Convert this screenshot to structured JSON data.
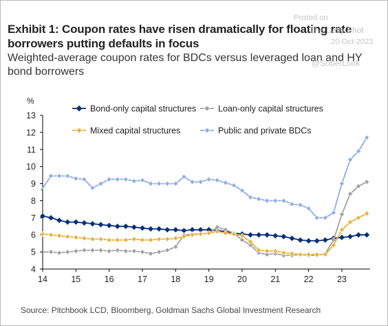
{
  "header": {
    "title": "Exhibit 1: Coupon rates have risen dramatically for floating rate borrowers putting defaults in focus",
    "subtitle": "Weighted-average coupon rates for BDCs versus leveraged loan and HY bond borrowers"
  },
  "watermark": {
    "posted_on": "Posted on",
    "brand": "The Daily Shot",
    "date": "20-Oct-2023",
    "handle": "@SoberLook"
  },
  "source": "Source: Pitchbook LCD, Bloomberg, Goldman Sachs Global Investment Research",
  "chart_data": {
    "type": "line",
    "ylabel": "%",
    "ylim": [
      4,
      13
    ],
    "yticks": [
      4,
      5,
      6,
      7,
      8,
      9,
      10,
      11,
      12,
      13
    ],
    "xlim": [
      14,
      23.85
    ],
    "xticks": [
      "14",
      "15",
      "16",
      "17",
      "18",
      "19",
      "20",
      "21",
      "22",
      "23"
    ],
    "grid": false,
    "legend": "top",
    "x": [
      14.0,
      14.25,
      14.5,
      14.75,
      15.0,
      15.25,
      15.5,
      15.75,
      16.0,
      16.25,
      16.5,
      16.75,
      17.0,
      17.25,
      17.5,
      17.75,
      18.0,
      18.25,
      18.5,
      18.75,
      19.0,
      19.25,
      19.5,
      19.75,
      20.0,
      20.25,
      20.5,
      20.75,
      21.0,
      21.25,
      21.5,
      21.75,
      22.0,
      22.25,
      22.5,
      22.75,
      23.0,
      23.25,
      23.5,
      23.75
    ],
    "series": [
      {
        "name": "Bond-only capital structures",
        "color": "#0a2f7a",
        "marker": "diamond",
        "values": [
          7.1,
          7.0,
          6.85,
          6.75,
          6.75,
          6.7,
          6.65,
          6.6,
          6.55,
          6.5,
          6.5,
          6.45,
          6.4,
          6.35,
          6.35,
          6.3,
          6.3,
          6.25,
          6.3,
          6.3,
          6.3,
          6.25,
          6.2,
          6.1,
          6.05,
          6.0,
          6.0,
          6.0,
          5.95,
          5.9,
          5.8,
          5.7,
          5.65,
          5.65,
          5.7,
          5.8,
          5.85,
          5.9,
          6.0,
          6.0
        ]
      },
      {
        "name": "Loan-only capital structures",
        "color": "#a0a0a0",
        "marker": "diamond",
        "values": [
          null,
          5.0,
          4.95,
          5.0,
          5.05,
          5.1,
          5.1,
          5.1,
          5.05,
          5.1,
          5.05,
          5.05,
          5.0,
          4.9,
          5.0,
          5.1,
          5.3,
          6.0,
          6.05,
          6.05,
          6.1,
          6.45,
          6.3,
          6.1,
          5.7,
          5.4,
          4.95,
          4.85,
          4.9,
          4.8,
          4.8,
          4.85,
          4.8,
          4.8,
          4.9,
          5.7,
          7.2,
          8.4,
          8.85,
          9.1
        ]
      },
      {
        "name": "Mixed capital structures",
        "color": "#e8b23a",
        "marker": "diamond",
        "values": [
          6.05,
          6.0,
          5.95,
          5.9,
          5.85,
          5.8,
          5.75,
          5.75,
          5.7,
          5.7,
          5.7,
          5.75,
          5.7,
          5.7,
          5.75,
          5.75,
          5.8,
          5.9,
          6.0,
          6.05,
          6.1,
          6.2,
          6.1,
          6.05,
          5.95,
          5.6,
          5.1,
          5.05,
          5.05,
          4.95,
          4.9,
          4.85,
          4.85,
          4.85,
          4.85,
          5.4,
          6.3,
          6.75,
          7.0,
          7.25
        ]
      },
      {
        "name": "Public and private BDCs",
        "color": "#8faee3",
        "marker": "diamond",
        "values": [
          null,
          9.45,
          9.45,
          9.45,
          9.3,
          9.25,
          8.75,
          9.0,
          9.25,
          9.25,
          9.25,
          9.15,
          9.2,
          9.0,
          9.0,
          9.0,
          9.0,
          9.4,
          9.1,
          9.1,
          9.25,
          9.2,
          9.05,
          8.9,
          8.6,
          8.2,
          8.1,
          8.0,
          8.0,
          8.0,
          7.8,
          7.75,
          7.55,
          7.0,
          7.0,
          7.3,
          9.0,
          10.4,
          10.9,
          11.7
        ]
      }
    ],
    "series_edge": [
      {
        "series": "Loan-only capital structures",
        "x": 14.0,
        "y": 5.0
      },
      {
        "series": "Public and private BDCs",
        "x": 13.95,
        "y": 8.6
      }
    ]
  }
}
